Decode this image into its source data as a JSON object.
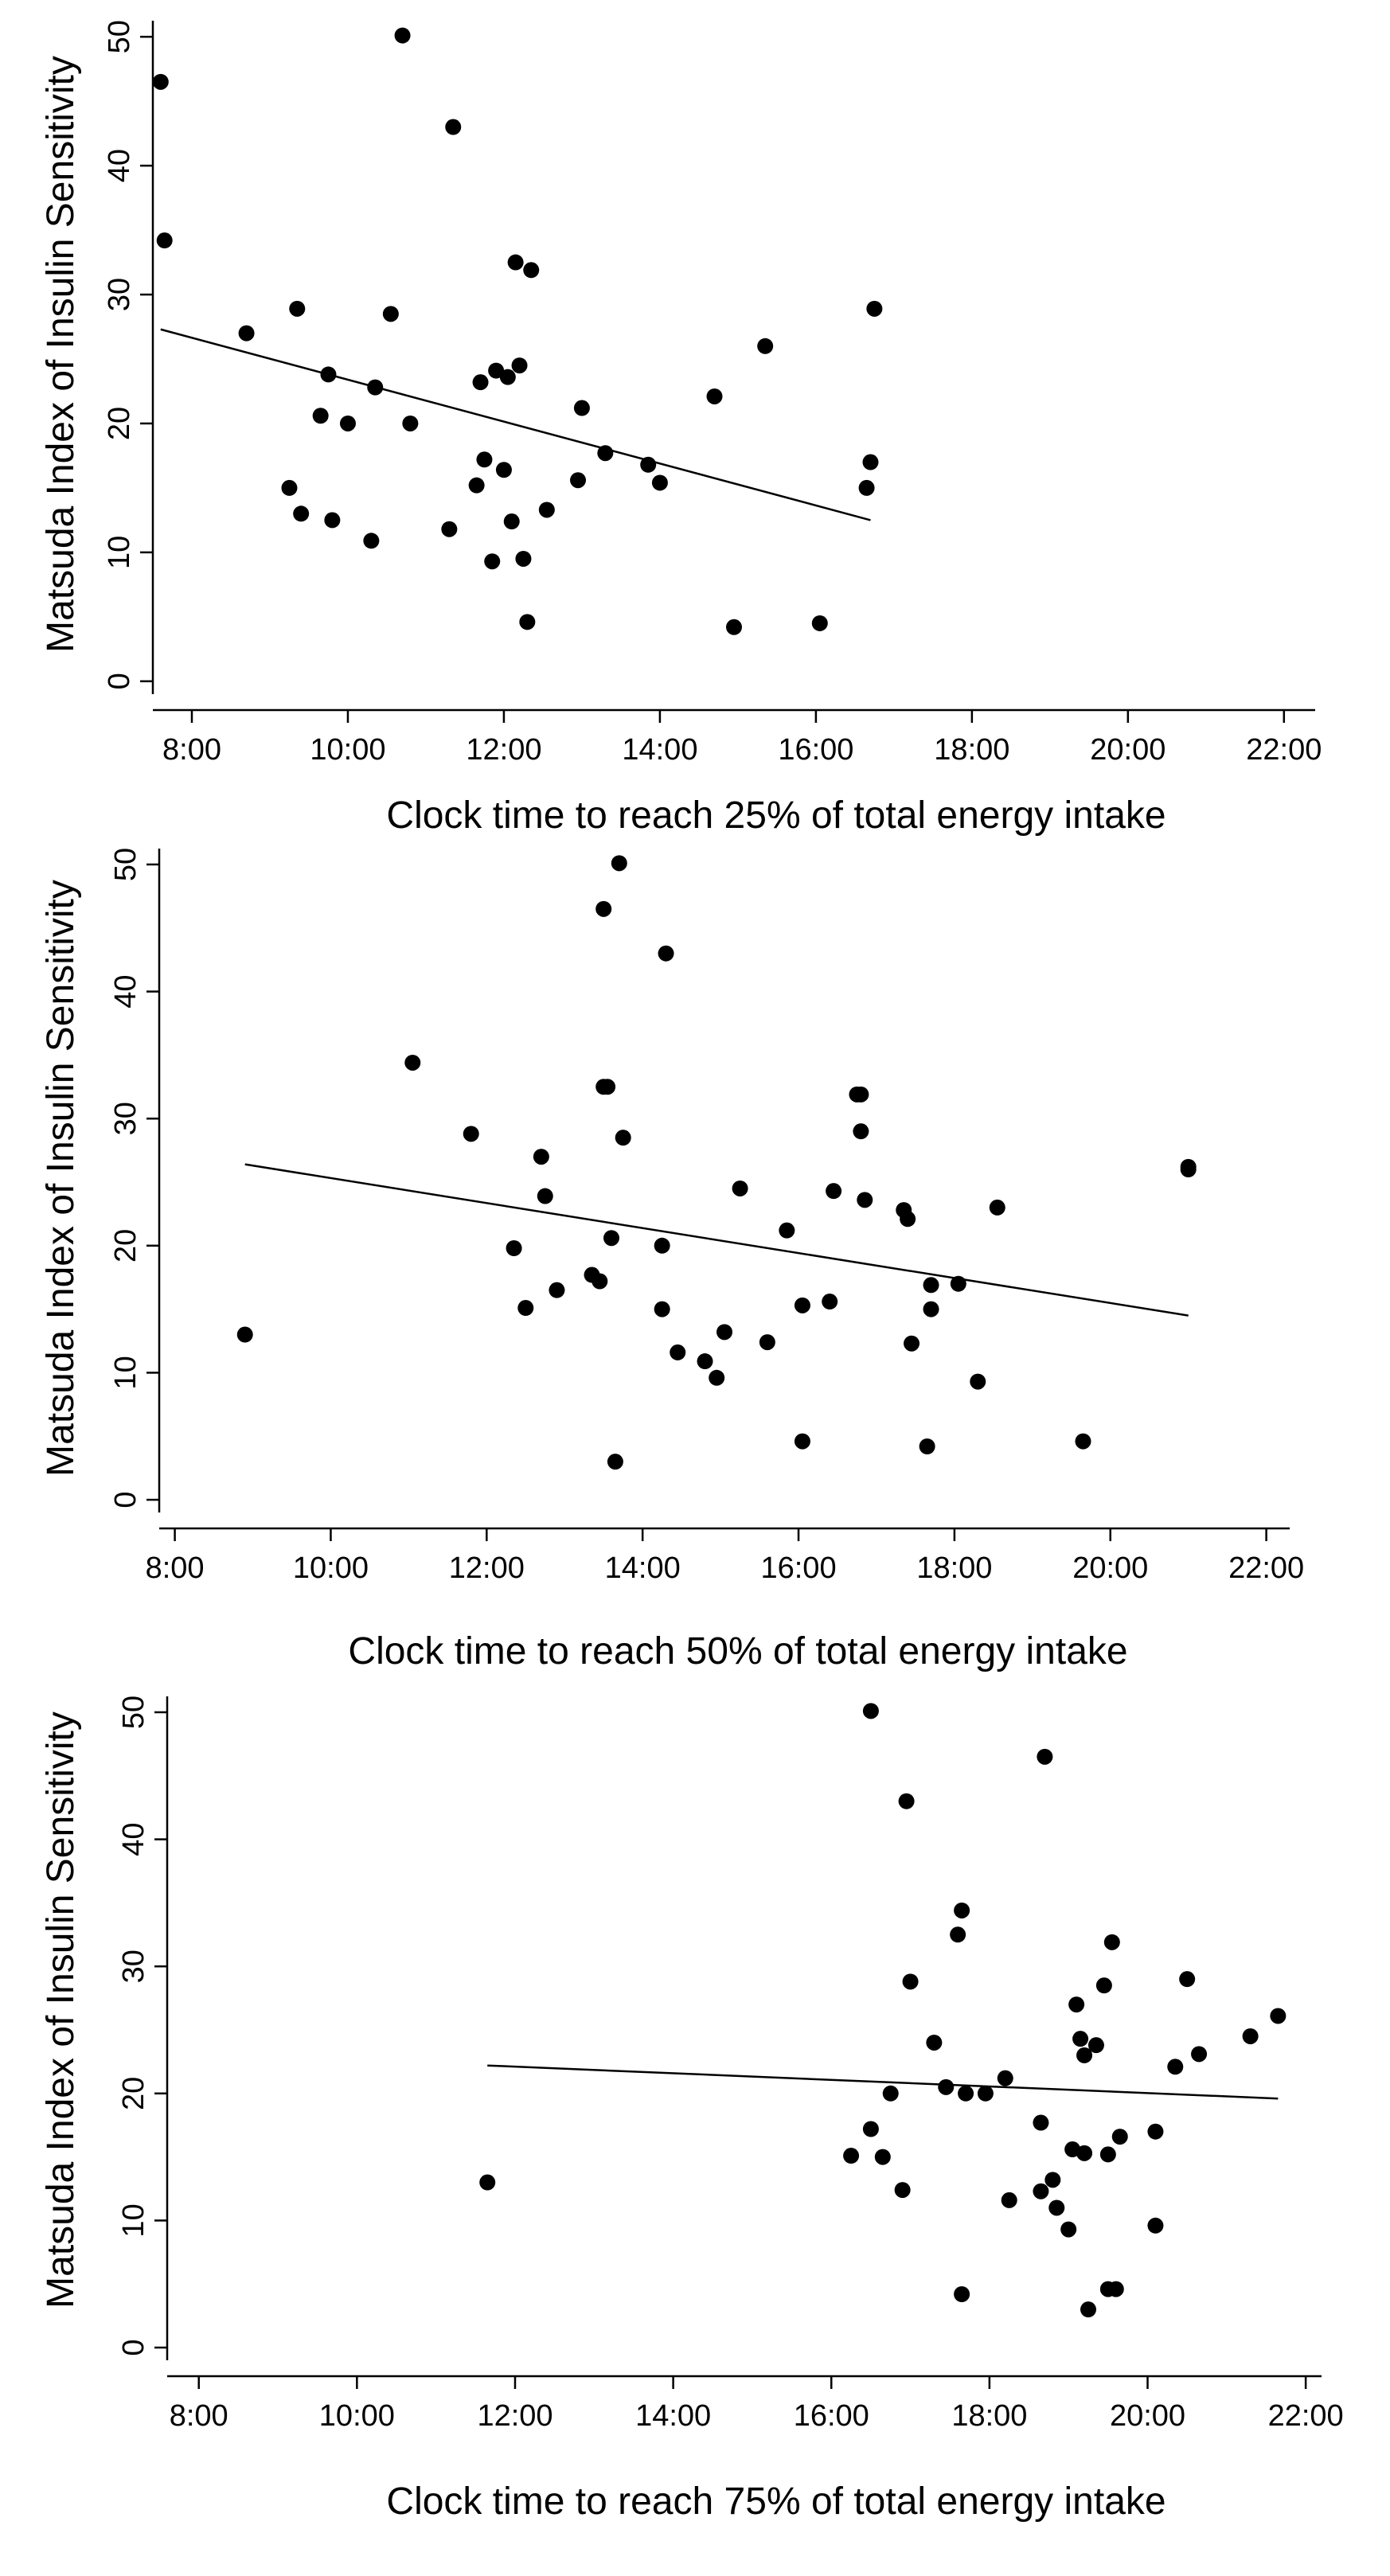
{
  "chart_data": [
    {
      "type": "scatter",
      "xlabel": "Clock time to reach 25% of total energy intake",
      "ylabel": "Matsuda Index of Insulin Sensitivity",
      "xlim": [
        7.5,
        22.4
      ],
      "ylim": [
        -1,
        51
      ],
      "xticks": [
        8,
        10,
        12,
        14,
        16,
        18,
        20,
        22
      ],
      "xtick_labels": [
        "8:00",
        "10:00",
        "12:00",
        "14:00",
        "16:00",
        "18:00",
        "20:00",
        "22:00"
      ],
      "yticks": [
        0,
        10,
        20,
        30,
        40,
        50
      ],
      "ytick_labels": [
        "0",
        "10",
        "20",
        "30",
        "40",
        "50"
      ],
      "fit_line": {
        "x": [
          7.6,
          16.7
        ],
        "y": [
          27.3,
          12.5
        ]
      },
      "points": {
        "x": [
          7.6,
          7.65,
          8.7,
          9.25,
          9.35,
          9.4,
          9.65,
          9.75,
          9.8,
          10.0,
          10.3,
          10.35,
          10.55,
          10.7,
          10.8,
          11.3,
          11.35,
          11.65,
          11.7,
          11.75,
          11.85,
          11.9,
          12.0,
          12.05,
          12.1,
          12.15,
          12.2,
          12.25,
          12.3,
          12.35,
          12.55,
          12.95,
          13.0,
          13.3,
          13.85,
          14.0,
          14.7,
          14.95,
          15.35,
          16.05,
          16.65,
          16.7,
          16.75
        ],
        "y": [
          46.5,
          34.2,
          27.0,
          15.0,
          28.9,
          13.0,
          20.6,
          23.8,
          12.5,
          20.0,
          10.9,
          22.8,
          28.5,
          50.1,
          20.0,
          11.8,
          43.0,
          15.2,
          23.2,
          17.2,
          9.3,
          24.1,
          16.4,
          23.6,
          12.4,
          32.5,
          24.5,
          9.5,
          4.6,
          31.9,
          13.3,
          15.6,
          21.2,
          17.7,
          16.8,
          15.4,
          22.1,
          4.2,
          26.0,
          4.5,
          15.0,
          17.0,
          28.9
        ]
      }
    },
    {
      "type": "scatter",
      "xlabel": "Clock time to reach 50% of total energy intake",
      "ylabel": "Matsuda Index of Insulin Sensitivity",
      "xlim": [
        7.8,
        22.3
      ],
      "ylim": [
        -1,
        51
      ],
      "xticks": [
        8,
        10,
        12,
        14,
        16,
        18,
        20,
        22
      ],
      "xtick_labels": [
        "8:00",
        "10:00",
        "12:00",
        "14:00",
        "16:00",
        "18:00",
        "20:00",
        "22:00"
      ],
      "yticks": [
        0,
        10,
        20,
        30,
        40,
        50
      ],
      "ytick_labels": [
        "0",
        "10",
        "20",
        "30",
        "40",
        "50"
      ],
      "fit_line": {
        "x": [
          8.9,
          21.0
        ],
        "y": [
          26.4,
          14.5
        ]
      },
      "points": {
        "x": [
          8.9,
          11.05,
          11.8,
          12.35,
          12.5,
          12.7,
          12.75,
          12.9,
          13.35,
          13.45,
          13.5,
          13.5,
          13.55,
          13.6,
          13.65,
          13.7,
          13.75,
          14.25,
          14.25,
          14.3,
          14.45,
          14.8,
          14.95,
          15.05,
          15.25,
          15.6,
          15.85,
          16.05,
          16.05,
          16.4,
          16.45,
          16.75,
          16.8,
          16.8,
          16.85,
          17.35,
          17.4,
          17.45,
          17.65,
          17.7,
          17.7,
          18.05,
          18.3,
          18.55,
          19.65,
          21.0,
          21.0
        ],
        "y": [
          13.0,
          34.4,
          28.8,
          19.8,
          15.1,
          27.0,
          23.9,
          16.5,
          17.7,
          17.2,
          32.5,
          46.5,
          32.5,
          20.6,
          3.0,
          50.1,
          28.5,
          15.0,
          20.0,
          43.0,
          11.6,
          10.9,
          9.6,
          13.2,
          24.5,
          12.4,
          21.2,
          15.3,
          4.6,
          15.6,
          24.3,
          31.9,
          29.0,
          31.9,
          23.6,
          22.8,
          22.1,
          12.3,
          4.2,
          15.0,
          16.9,
          17.0,
          9.3,
          23.0,
          4.6,
          26.0,
          26.2
        ]
      }
    },
    {
      "type": "scatter",
      "xlabel": "Clock time to reach 75% of total energy intake",
      "ylabel": "Matsuda Index of Insulin Sensitivity",
      "xlim": [
        7.6,
        22.2
      ],
      "ylim": [
        -1,
        51
      ],
      "xticks": [
        8,
        10,
        12,
        14,
        16,
        18,
        20,
        22
      ],
      "xtick_labels": [
        "8:00",
        "10:00",
        "12:00",
        "14:00",
        "16:00",
        "18:00",
        "20:00",
        "22:00"
      ],
      "yticks": [
        0,
        10,
        20,
        30,
        40,
        50
      ],
      "ytick_labels": [
        "0",
        "10",
        "20",
        "30",
        "40",
        "50"
      ],
      "fit_line": {
        "x": [
          11.65,
          21.65
        ],
        "y": [
          22.2,
          19.6
        ]
      },
      "points": {
        "x": [
          11.65,
          16.25,
          16.5,
          16.5,
          16.65,
          16.75,
          16.9,
          16.95,
          17.0,
          17.3,
          17.45,
          17.6,
          17.65,
          17.65,
          17.7,
          17.95,
          18.2,
          18.25,
          18.65,
          18.65,
          18.7,
          18.8,
          18.85,
          19.0,
          19.05,
          19.1,
          19.15,
          19.2,
          19.2,
          19.25,
          19.35,
          19.45,
          19.5,
          19.5,
          19.55,
          19.6,
          19.65,
          20.1,
          20.1,
          20.35,
          20.5,
          20.65,
          21.3,
          21.65
        ],
        "y": [
          13.0,
          15.1,
          50.1,
          17.2,
          15.0,
          20.0,
          12.4,
          43.0,
          28.8,
          24.0,
          20.5,
          32.5,
          4.2,
          34.4,
          20.0,
          20.0,
          21.2,
          11.6,
          17.7,
          12.3,
          46.5,
          13.2,
          11.0,
          9.3,
          15.6,
          27.0,
          24.3,
          23.0,
          15.3,
          3.0,
          23.8,
          28.5,
          15.2,
          4.6,
          31.9,
          4.6,
          16.6,
          9.6,
          17.0,
          22.1,
          29.0,
          23.1,
          24.5,
          26.1
        ]
      }
    }
  ]
}
